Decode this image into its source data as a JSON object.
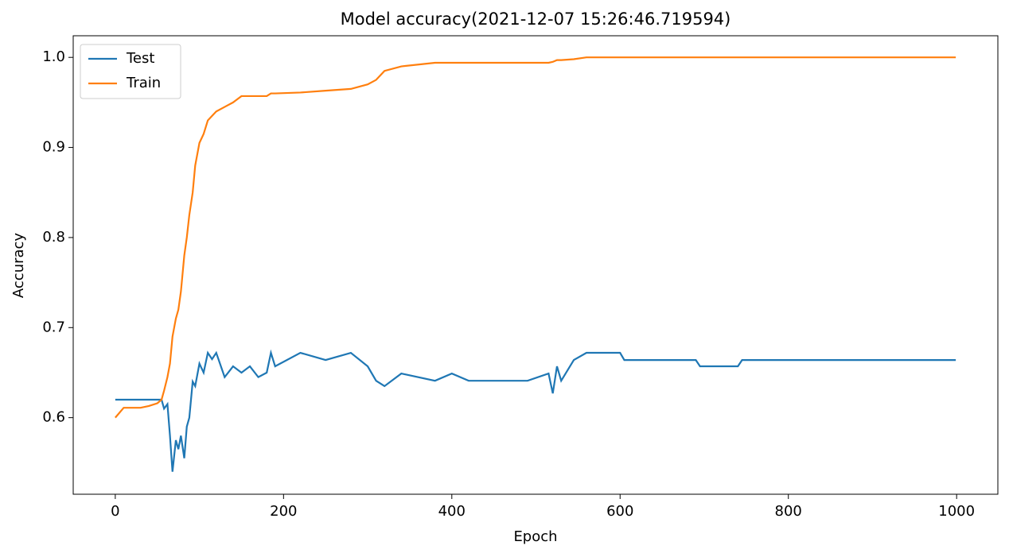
{
  "chart_data": {
    "type": "line",
    "title": "Model accuracy(2021-12-07 15:26:46.719594)",
    "xlabel": "Epoch",
    "ylabel": "Accuracy",
    "x": [
      0,
      10,
      20,
      30,
      40,
      50,
      55,
      58,
      62,
      65,
      68,
      72,
      75,
      78,
      82,
      85,
      88,
      92,
      95,
      100,
      105,
      110,
      115,
      120,
      130,
      140,
      150,
      160,
      170,
      180,
      185,
      190,
      220,
      250,
      280,
      300,
      310,
      320,
      340,
      380,
      400,
      420,
      490,
      515,
      520,
      525,
      530,
      545,
      560,
      600,
      605,
      690,
      695,
      740,
      745,
      999
    ],
    "series": [
      {
        "name": "Test",
        "color": "#1f77b4",
        "values": [
          0.62,
          0.62,
          0.62,
          0.62,
          0.62,
          0.62,
          0.62,
          0.61,
          0.615,
          0.58,
          0.54,
          0.575,
          0.565,
          0.58,
          0.555,
          0.59,
          0.6,
          0.64,
          0.635,
          0.66,
          0.65,
          0.672,
          0.665,
          0.672,
          0.645,
          0.657,
          0.65,
          0.657,
          0.645,
          0.65,
          0.672,
          0.657,
          0.672,
          0.664,
          0.672,
          0.657,
          0.641,
          0.635,
          0.649,
          0.641,
          0.649,
          0.641,
          0.641,
          0.649,
          0.627,
          0.657,
          0.641,
          0.664,
          0.672,
          0.672,
          0.664,
          0.664,
          0.657,
          0.657,
          0.664,
          0.664
        ]
      },
      {
        "name": "Train",
        "color": "#ff7f0e",
        "values": [
          0.6,
          0.611,
          0.611,
          0.611,
          0.613,
          0.616,
          0.62,
          0.63,
          0.645,
          0.66,
          0.69,
          0.71,
          0.72,
          0.74,
          0.78,
          0.8,
          0.825,
          0.85,
          0.88,
          0.905,
          0.915,
          0.93,
          0.935,
          0.94,
          0.945,
          0.95,
          0.957,
          0.957,
          0.957,
          0.957,
          0.96,
          0.96,
          0.961,
          0.963,
          0.965,
          0.97,
          0.975,
          0.985,
          0.99,
          0.994,
          0.994,
          0.994,
          0.994,
          0.994,
          0.995,
          0.997,
          0.997,
          0.998,
          1,
          1,
          1,
          1,
          1,
          1,
          1,
          1
        ]
      }
    ],
    "xlim": [
      -50,
      1049
    ],
    "ylim": [
      0.515,
      1.024
    ],
    "xticks": [
      0,
      200,
      400,
      600,
      800,
      1000
    ],
    "yticks": [
      0.6,
      0.7,
      0.8,
      0.9,
      {
        "value": 1,
        "label": "1.0"
      }
    ],
    "legend": "upper left"
  }
}
